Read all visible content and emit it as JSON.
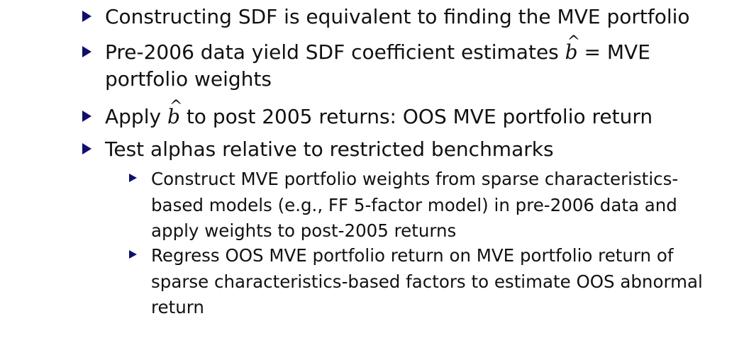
{
  "bullets": [
    {
      "text": "Constructing SDF is equivalent to finding the MVE portfolio"
    },
    {
      "text_before": "Pre-2006 data yield SDF coefficient estimates",
      "symbol": "b",
      "hat": "^",
      "text_after": "= MVE portfolio weights"
    },
    {
      "text_before": "Apply",
      "symbol": "b",
      "hat": "^",
      "text_after": "to post 2005 returns: OOS MVE portfolio return"
    },
    {
      "text": "Test alphas relative to restricted benchmarks",
      "sub": [
        {
          "text": "Construct MVE portfolio weights from sparse characteristics-based models (e.g., FF 5-factor model) in pre-2006 data and apply weights to post-2005 returns"
        },
        {
          "text": "Regress OOS MVE portfolio return on MVE portfolio return of sparse characteristics-based factors to estimate OOS abnormal return"
        }
      ]
    }
  ],
  "colors": {
    "bullet": "#0f0f6e",
    "text": "#111111",
    "background": "#ffffff"
  },
  "icons": {
    "bullet": "triangle-right-icon"
  }
}
